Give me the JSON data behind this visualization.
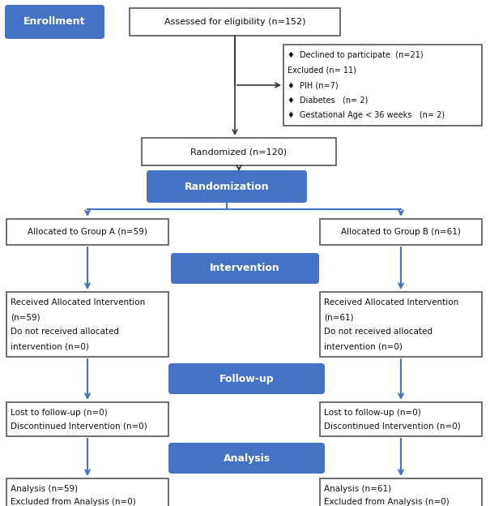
{
  "bg_color": "#ffffff",
  "blue_color": "#4472C4",
  "blue_dark": "#2E5FA3",
  "box_edge_color": "#555555",
  "text_color_dark": "#111111",
  "text_color_white": "#ffffff",
  "enrollment_label": "Enrollment",
  "assessed_text": "Assessed for eligibility (n=152)",
  "randomized_text": "Randomized (n=120)",
  "randomization_text": "Randomization",
  "group_a_text": "Allocated to Group A (n=59)",
  "group_b_text": "Allocated to Group B (n=61)",
  "intervention_text": "Intervention",
  "followup_text": "Follow-up",
  "analysis_text": "Analysis",
  "excluded_lines": [
    "♦  Declined to participate  (n=21)",
    "Excluded (n= 11)",
    "♦  PIH (n=7)",
    "♦  Diabetes   (n= 2)",
    "♦  Gestational Age < 36 weeks   (n= 2)"
  ],
  "received_a_lines": [
    "Received Allocated Intervention",
    "(n=59)",
    "Do not received allocated",
    "intervention (n=0)"
  ],
  "received_b_lines": [
    "Received Allocated Intervention",
    "(n=61)",
    "Do not received allocated",
    "intervention (n=0)"
  ],
  "lost_a_lines": [
    "Lost to follow-up (n=0)",
    "Discontinued Intervention (n=0)"
  ],
  "lost_b_lines": [
    "Lost to follow-up (n=0)",
    "Discontinued Intervention (n=0)"
  ],
  "analysis_a_lines": [
    "Analysis (n=59)",
    "Excluded from Analysis (n=0)"
  ],
  "analysis_b_lines": [
    "Analysis (n=61)",
    "Excluded from Analysis (n=0)"
  ]
}
